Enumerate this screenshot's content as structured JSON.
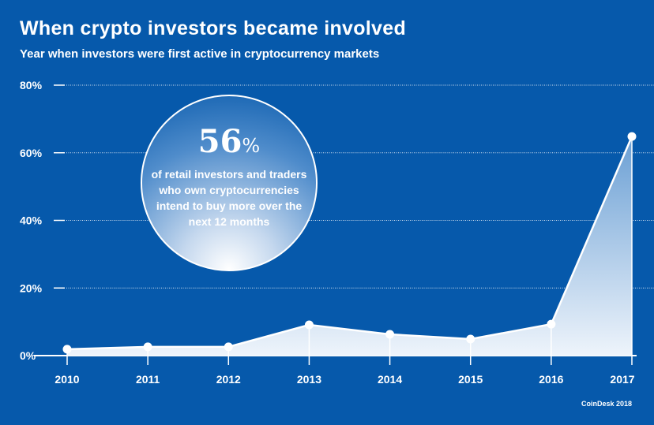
{
  "chart_data": {
    "type": "area",
    "title": "When crypto investors became involved",
    "subtitle": "Year when investors were first active in cryptocurrency markets",
    "xlabel": "",
    "ylabel": "",
    "categories": [
      "2010",
      "2011",
      "2012",
      "2013",
      "2014",
      "2015",
      "2016",
      "2017"
    ],
    "values": [
      1.9,
      2.6,
      2.6,
      9.1,
      6.3,
      4.9,
      9.3,
      64.8
    ],
    "yticks": [
      "0%",
      "20%",
      "40%",
      "60%",
      "80%"
    ],
    "ytick_values": [
      0,
      20,
      40,
      60,
      80
    ],
    "ylim": [
      0,
      80
    ],
    "grid": true,
    "annotation": {
      "value": "56",
      "unit": "%",
      "text": "of retail investors and traders who own cryptocurrencies intend to buy more over the next 12 months"
    },
    "source": "CoinDesk 2018"
  },
  "colors": {
    "background": "#0659ab",
    "line": "#ffffff"
  }
}
